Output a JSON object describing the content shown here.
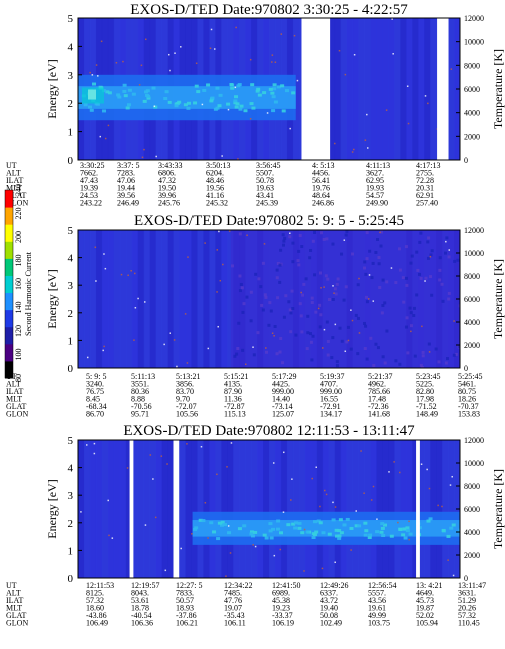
{
  "chart_data": [
    {
      "type": "heatmap",
      "title": "EXOS-D/TED   Date:970802  3:30:25 - 4:22:57",
      "ylabel": "Energy [eV]",
      "y2label": "Temperature [K]",
      "ylim": [
        0,
        5
      ],
      "yticks": [
        "0",
        "1",
        "2",
        "3",
        "4",
        "5"
      ],
      "y2lim": [
        0,
        12000
      ],
      "y2ticks": [
        "0",
        "2000",
        "4000",
        "6000",
        "8000",
        "10000",
        "12000"
      ],
      "band": {
        "center_ev": 2.2,
        "width_ev": 1.6
      },
      "gaps": [
        [
          0.585,
          0.66
        ],
        [
          0.94,
          0.97
        ]
      ],
      "rows": [
        {
          "label": "UT",
          "values": [
            "3:30:25",
            "3:37: 5",
            "3:43:33",
            "3:50:13",
            "3:56:45",
            "4: 5:13",
            "4:11:13",
            "4:17:13"
          ]
        },
        {
          "label": "ALT",
          "values": [
            "7662.",
            "7283.",
            "6806.",
            "6204.",
            "5507.",
            "4456.",
            "3627.",
            "2755."
          ]
        },
        {
          "label": "ILAT",
          "values": [
            "47.43",
            "47.06",
            "47.32",
            "48.46",
            "50.78",
            "56.41",
            "62.95",
            "72.28"
          ]
        },
        {
          "label": "MLT",
          "values": [
            "19.39",
            "19.44",
            "19.50",
            "19.56",
            "19.63",
            "19.76",
            "19.93",
            "20.31"
          ]
        },
        {
          "label": "GLAT",
          "values": [
            "24.53",
            "39.56",
            "39.96",
            "41.16",
            "43.41",
            "48.64",
            "54.57",
            "62.91"
          ]
        },
        {
          "label": "GLON",
          "values": [
            "243.22",
            "246.49",
            "245.76",
            "245.32",
            "245.39",
            "246.86",
            "249.90",
            "257.40"
          ]
        }
      ]
    },
    {
      "type": "heatmap",
      "title": "EXOS-D/TED   Date:970802  5: 9: 5 - 5:25:45",
      "ylabel": "Energy [eV]",
      "y2label": "Temperature [K]",
      "ylim": [
        0,
        5
      ],
      "yticks": [
        "0",
        "1",
        "2",
        "3",
        "4",
        "5"
      ],
      "y2lim": [
        0,
        12000
      ],
      "y2ticks": [
        "0",
        "2000",
        "4000",
        "6000",
        "8000",
        "10000",
        "12000"
      ],
      "band": null,
      "gaps": [],
      "rows": [
        {
          "label": "UT",
          "values": [
            "5: 9: 5",
            "5:11:13",
            "5:13:21",
            "5:15:21",
            "5:17:29",
            "5:19:37",
            "5:21:37",
            "5:23:45",
            "5:25:45"
          ]
        },
        {
          "label": "ALT",
          "values": [
            "3240.",
            "3551.",
            "3856.",
            "4135.",
            "4425.",
            "4707.",
            "4962.",
            "5225.",
            "5461."
          ]
        },
        {
          "label": "ILAT",
          "values": [
            "76.75",
            "80.36",
            "83.70",
            "87.90",
            "999.00",
            "999.00",
            "785.66",
            "82.80",
            "80.75"
          ]
        },
        {
          "label": "MLT",
          "values": [
            "8.45",
            "8.88",
            "9.70",
            "11.36",
            "14.40",
            "16.55",
            "17.48",
            "17.98",
            "18.26"
          ]
        },
        {
          "label": "GLAT",
          "values": [
            "-68.34",
            "-70.56",
            "-72.07",
            "-72.87",
            "-73.14",
            "-72.91",
            "-72.36",
            "-71.52",
            "-70.37"
          ]
        },
        {
          "label": "GLON",
          "values": [
            "86.70",
            "95.71",
            "105.56",
            "115.13",
            "125.07",
            "134.17",
            "141.68",
            "148.49",
            "153.83"
          ]
        }
      ]
    },
    {
      "type": "heatmap",
      "title": "EXOS-D/TED   Date:970802  12:11:53 - 13:11:47",
      "ylabel": "Energy [eV]",
      "y2label": "Temperature [K]",
      "ylim": [
        0,
        5
      ],
      "yticks": [
        "0",
        "1",
        "2",
        "3",
        "4",
        "5"
      ],
      "y2lim": [
        0,
        12000
      ],
      "y2ticks": [
        "0",
        "2000",
        "4000",
        "6000",
        "8000",
        "10000",
        "12000"
      ],
      "band": {
        "center_ev": 1.8,
        "width_ev": 1.2
      },
      "gaps": [
        [
          0.135,
          0.145
        ],
        [
          0.25,
          0.265
        ],
        [
          0.885,
          0.895
        ]
      ],
      "rows": [
        {
          "label": "UT",
          "values": [
            "12:11:53",
            "12:19:57",
            "12:27: 5",
            "12:34:22",
            "12:41:50",
            "12:49:26",
            "12:56:54",
            "13: 4:21",
            "13:11:47"
          ]
        },
        {
          "label": "ALT",
          "values": [
            "8125.",
            "8043.",
            "7833.",
            "7485.",
            "6989.",
            "6337.",
            "5557.",
            "4649.",
            "3631."
          ]
        },
        {
          "label": "ILAT",
          "values": [
            "57.32",
            "53.61",
            "50.57",
            "47.76",
            "45.38",
            "43.72",
            "43.56",
            "45.73",
            "51.29"
          ]
        },
        {
          "label": "MLT",
          "values": [
            "18.60",
            "18.78",
            "18.93",
            "19.07",
            "19.23",
            "19.40",
            "19.61",
            "19.87",
            "20.26"
          ]
        },
        {
          "label": "GLAT",
          "values": [
            "-43.86",
            "-40.54",
            "-37.86",
            "-35.43",
            "-33.37",
            "50.08",
            "49.99",
            "52.02",
            "57.32"
          ]
        },
        {
          "label": "GLON",
          "values": [
            "106.49",
            "106.36",
            "106.21",
            "106.11",
            "106.19",
            "102.49",
            "103.75",
            "105.94",
            "110.45"
          ]
        }
      ]
    }
  ],
  "colorbar": {
    "label": "Second Harmonic Current",
    "ticks": [
      "80",
      "100",
      "120",
      "140",
      "160",
      "180",
      "200",
      "220",
      "240"
    ],
    "colors": [
      "#000000",
      "#4b0082",
      "#1e1ea8",
      "#1f3ae6",
      "#1e90ff",
      "#00ced1",
      "#00c878",
      "#a0e000",
      "#ffff00",
      "#ffa500",
      "#ff0000"
    ]
  }
}
